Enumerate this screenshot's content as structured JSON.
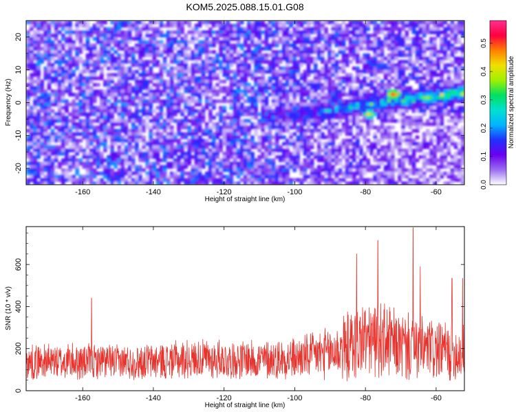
{
  "title": "KOM5.2025.088.15.01.G08",
  "colors": {
    "snr_line": "#e8322c",
    "frame": "#000000"
  },
  "chart_data": [
    {
      "type": "heatmap",
      "xlabel": "Height of straight line (km)",
      "ylabel": "Frequency (Hz)",
      "xlim": [
        -176,
        -52
      ],
      "ylim": [
        -25,
        25
      ],
      "xticks": [
        -160,
        -140,
        -120,
        -100,
        -80,
        -60
      ],
      "yticks": [
        -20,
        -10,
        0,
        10,
        20
      ],
      "colorbar": {
        "label": "Normalized spectral amplitude",
        "range": [
          0.0,
          0.58
        ],
        "ticks": [
          0.0,
          0.1,
          0.2,
          0.3,
          0.4,
          0.5
        ],
        "tick_labels": [
          "0.0",
          "0.1",
          "0.2",
          "0.3",
          "0.4",
          "0.5"
        ],
        "colormap": [
          "#ffffff",
          "#9a6df0",
          "#6a00f0",
          "#2030ff",
          "#00b4ff",
          "#00e0d0",
          "#00e060",
          "#a0f000",
          "#f0e000",
          "#ff8000",
          "#ff0040",
          "#ff3090"
        ]
      },
      "signal_track": {
        "start_height_km": -110,
        "end_height_km": -53,
        "start_frequency_hz": -5,
        "end_frequency_hz": 3,
        "peak_height_km": -72,
        "peak_frequency_hz": 2.5,
        "peak_amplitude": 0.53
      },
      "background_amplitude": 0.12
    },
    {
      "type": "line",
      "xlabel": "Height of straight line (km)",
      "ylabel": "SNR (10 * v/v)",
      "xlim": [
        -176,
        -52
      ],
      "ylim": [
        0,
        780
      ],
      "xticks": [
        -160,
        -140,
        -120,
        -100,
        -80,
        -60
      ],
      "yticks": [
        0,
        200,
        400,
        600
      ],
      "series": [
        {
          "color": "#e8322c",
          "envelope_x": [
            -176,
            -160,
            -150,
            -140,
            -130,
            -120,
            -110,
            -100,
            -90,
            -85,
            -80,
            -75,
            -70,
            -65,
            -60,
            -55,
            -52
          ],
          "envelope_mean": [
            135,
            140,
            135,
            140,
            150,
            150,
            145,
            155,
            180,
            210,
            250,
            240,
            210,
            200,
            190,
            180,
            180
          ],
          "envelope_amplitude": [
            85,
            90,
            85,
            90,
            95,
            95,
            95,
            100,
            130,
            170,
            190,
            180,
            170,
            160,
            150,
            140,
            140
          ],
          "notable_spikes": [
            {
              "x": -157.5,
              "y": 440
            },
            {
              "x": -82.5,
              "y": 650
            },
            {
              "x": -76.5,
              "y": 715
            },
            {
              "x": -66.5,
              "y": 775
            },
            {
              "x": -64.5,
              "y": 590
            },
            {
              "x": -55.5,
              "y": 535
            },
            {
              "x": -52.5,
              "y": 535
            }
          ]
        }
      ]
    }
  ]
}
